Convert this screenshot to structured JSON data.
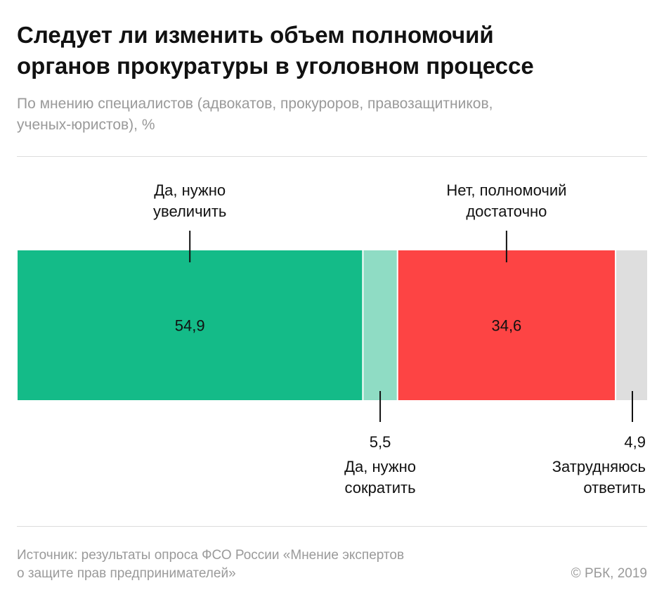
{
  "title_lines": [
    "Следует ли изменить объем полномочий",
    "органов прокуратуры в уголовном процессе"
  ],
  "subtitle_lines": [
    "По мнению специалистов (адвокатов, прокуроров, правозащитников,",
    "ученых-юристов), %"
  ],
  "source_lines": [
    "Источник: результаты опроса ФСО России «Мнение экспертов",
    "о защите прав предпринимателей»"
  ],
  "copyright": "© РБК, 2019",
  "chart_data": {
    "type": "bar",
    "orientation": "horizontal-stacked",
    "unit": "%",
    "categories": [
      "Да, нужно увеличить",
      "Да, нужно сократить",
      "Нет, полномочий достаточно",
      "Затрудняюсь ответить"
    ],
    "values": [
      54.9,
      5.5,
      34.6,
      4.9
    ],
    "value_labels": [
      "54,9",
      "5,5",
      "34,6",
      "4,9"
    ],
    "label_lines": [
      [
        "Да, нужно",
        "увеличить"
      ],
      [
        "Да, нужно",
        "сократить"
      ],
      [
        "Нет, полномочий",
        "достаточно"
      ],
      [
        "Затрудняюсь",
        "ответить"
      ]
    ],
    "value_label_position": [
      "inside",
      "below",
      "inside",
      "below"
    ],
    "category_label_position": [
      "above",
      "below",
      "above",
      "below"
    ],
    "colors": [
      "#14bb88",
      "#8fdcc4",
      "#fd4444",
      "#dedede"
    ],
    "legend": "none",
    "grid": false
  }
}
